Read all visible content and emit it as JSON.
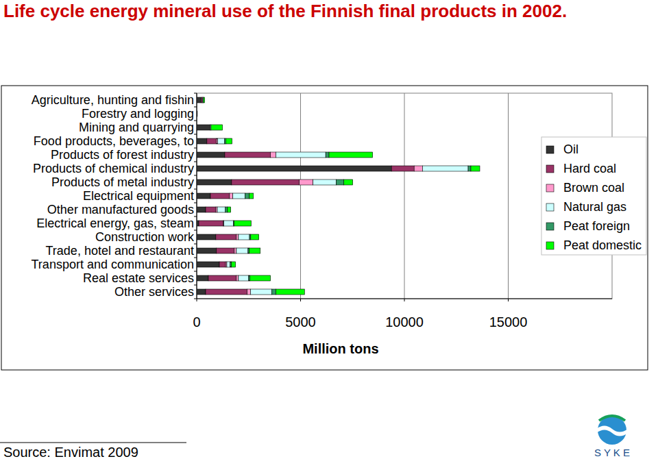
{
  "chart_data": {
    "type": "bar",
    "orientation": "horizontal",
    "stacked": true,
    "grid": true,
    "legend": "right",
    "title": "Life cycle energy mineral use of the Finnish final products in 2002.",
    "xlabel": "Million tons",
    "annotations": [
      "Source: Envimat 2009",
      "S Y K E"
    ],
    "categories": [
      "Agriculture, hunting and fishin",
      "Forestry and logging",
      "Mining and quarrying",
      "Food products, beverages, to",
      "Products of forest industry",
      "Products of chemical industry",
      "Products of metal industry",
      "Electrical equipment",
      "Other manufactured goods",
      "Electrical energy, gas, steam",
      "Construction work",
      "Trade, hotel and restaurant",
      "Transport and communication",
      "Real estate services",
      "Other services"
    ],
    "xlim": [
      0,
      20000
    ],
    "xticks": [
      0,
      5000,
      10000,
      15000
    ],
    "series": [
      {
        "name": "Oil",
        "color": "#333333",
        "values": [
          220,
          30,
          650,
          490,
          1350,
          9380,
          1680,
          660,
          430,
          100,
          920,
          950,
          1090,
          560,
          430
        ]
      },
      {
        "name": "Hard coal",
        "color": "#993366",
        "values": [
          60,
          0,
          0,
          460,
          2200,
          1090,
          3260,
          920,
          490,
          1180,
          990,
          860,
          300,
          1350,
          2000
        ]
      },
      {
        "name": "Brown coal",
        "color": "#ff99cc",
        "values": [
          0,
          0,
          0,
          60,
          260,
          400,
          660,
          160,
          70,
          30,
          100,
          100,
          60,
          100,
          160
        ]
      },
      {
        "name": "Natural gas",
        "color": "#ccffff",
        "values": [
          40,
          0,
          40,
          330,
          2400,
          2200,
          1120,
          590,
          390,
          460,
          530,
          560,
          160,
          490,
          1020
        ]
      },
      {
        "name": "Peat foreign",
        "color": "#339966",
        "values": [
          0,
          0,
          0,
          60,
          160,
          130,
          360,
          200,
          100,
          30,
          60,
          60,
          60,
          60,
          200
        ]
      },
      {
        "name": "Peat domestic",
        "color": "#00ff00",
        "values": [
          60,
          0,
          550,
          300,
          2100,
          430,
          430,
          200,
          160,
          820,
          390,
          530,
          200,
          990,
          1380
        ]
      }
    ]
  }
}
